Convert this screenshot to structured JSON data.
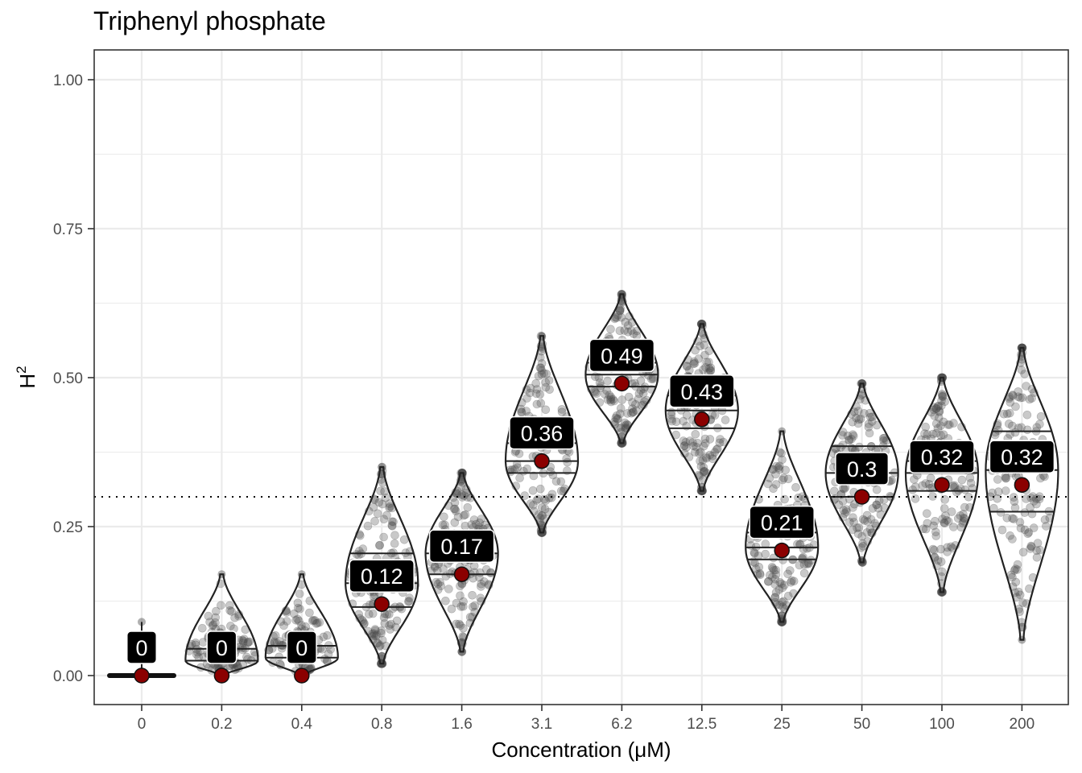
{
  "chart_data": {
    "type": "violin",
    "title": "Triphenyl phosphate",
    "xlabel": "Concentration (μM)",
    "ylabel": "H",
    "ylabel_superscript": "2",
    "ylim": [
      -0.05,
      1.05
    ],
    "yticks": [
      "0.00",
      "0.25",
      "0.50",
      "0.75",
      "1.00"
    ],
    "threshold_line": 0.3,
    "grid": true,
    "categories": [
      "0",
      "0.2",
      "0.4",
      "0.8",
      "1.6",
      "3.1",
      "6.2",
      "12.5",
      "25",
      "50",
      "100",
      "200"
    ],
    "medians": [
      0,
      0,
      0,
      0.12,
      0.17,
      0.36,
      0.49,
      0.43,
      0.21,
      0.3,
      0.32,
      0.32
    ],
    "median_labels": [
      "0",
      "0",
      "0",
      "0.12",
      "0.17",
      "0.36",
      "0.49",
      "0.43",
      "0.21",
      "0.3",
      "0.32",
      "0.32"
    ],
    "ranges": [
      [
        0,
        0.09
      ],
      [
        0,
        0.17
      ],
      [
        0,
        0.17
      ],
      [
        0.02,
        0.35
      ],
      [
        0.04,
        0.34
      ],
      [
        0.24,
        0.57
      ],
      [
        0.39,
        0.64
      ],
      [
        0.31,
        0.59
      ],
      [
        0.09,
        0.41
      ],
      [
        0.19,
        0.49
      ],
      [
        0.14,
        0.5
      ],
      [
        0.06,
        0.55
      ]
    ],
    "quartiles": [
      [
        0,
        0,
        0
      ],
      [
        0.005,
        0.025,
        0.045
      ],
      [
        0.005,
        0.03,
        0.05
      ],
      [
        0.115,
        0.155,
        0.205
      ],
      [
        0.17,
        0.205,
        0.24
      ],
      [
        0.34,
        0.36,
        0.39
      ],
      [
        0.485,
        0.505,
        0.525
      ],
      [
        0.415,
        0.445,
        0.47
      ],
      [
        0.195,
        0.215,
        0.24
      ],
      [
        0.3,
        0.34,
        0.385
      ],
      [
        0.31,
        0.34,
        0.36
      ],
      [
        0.275,
        0.345,
        0.41
      ]
    ],
    "colors": {
      "median_point": "#8b0000",
      "violin_outline": "#222222",
      "jitter_point": "#4d4d4d",
      "label_box": "#000000",
      "grid": "#ebebeb"
    }
  }
}
